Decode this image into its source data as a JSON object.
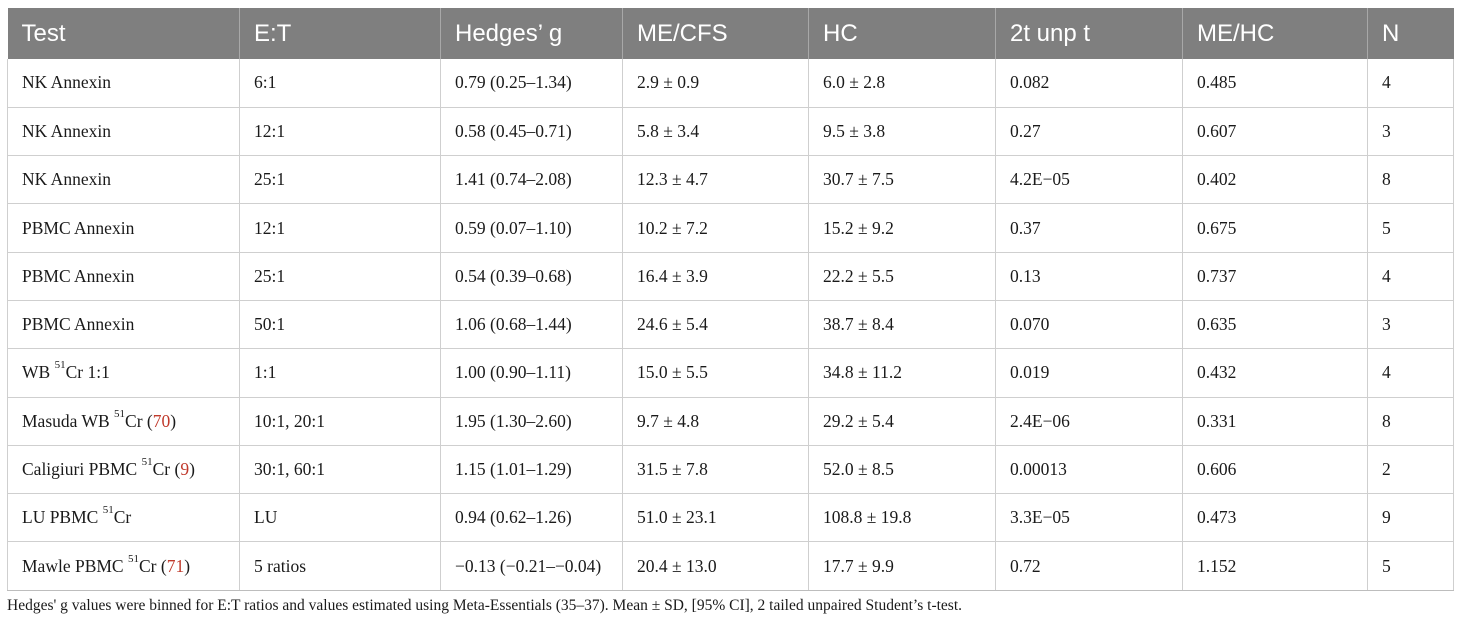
{
  "table": {
    "headers": [
      "Test",
      "E:T",
      "Hedges’ g",
      "ME/CFS",
      "HC",
      "2t unp t",
      "ME/HC",
      "N"
    ],
    "rows": [
      {
        "test_prefix": "NK Annexin",
        "sup": "",
        "test_suffix": "",
        "ref": "",
        "ref_suffix": "",
        "et": "6:1",
        "hedges": "0.79 (0.25–1.34)",
        "mecfs": "2.9 ± 0.9",
        "hc": "6.0 ± 2.8",
        "t": "0.082",
        "mehc": "0.485",
        "n": "4"
      },
      {
        "test_prefix": "NK Annexin",
        "sup": "",
        "test_suffix": "",
        "ref": "",
        "ref_suffix": "",
        "et": "12:1",
        "hedges": "0.58 (0.45–0.71)",
        "mecfs": "5.8 ± 3.4",
        "hc": "9.5 ± 3.8",
        "t": "0.27",
        "mehc": "0.607",
        "n": "3"
      },
      {
        "test_prefix": "NK Annexin",
        "sup": "",
        "test_suffix": "",
        "ref": "",
        "ref_suffix": "",
        "et": "25:1",
        "hedges": "1.41 (0.74–2.08)",
        "mecfs": "12.3 ± 4.7",
        "hc": "30.7 ± 7.5",
        "t": "4.2E−05",
        "mehc": "0.402",
        "n": "8"
      },
      {
        "test_prefix": "PBMC Annexin",
        "sup": "",
        "test_suffix": "",
        "ref": "",
        "ref_suffix": "",
        "et": "12:1",
        "hedges": "0.59 (0.07–1.10)",
        "mecfs": "10.2 ± 7.2",
        "hc": "15.2 ± 9.2",
        "t": "0.37",
        "mehc": "0.675",
        "n": "5"
      },
      {
        "test_prefix": "PBMC Annexin",
        "sup": "",
        "test_suffix": "",
        "ref": "",
        "ref_suffix": "",
        "et": "25:1",
        "hedges": "0.54 (0.39–0.68)",
        "mecfs": "16.4 ± 3.9",
        "hc": "22.2 ± 5.5",
        "t": "0.13",
        "mehc": "0.737",
        "n": "4"
      },
      {
        "test_prefix": "PBMC Annexin",
        "sup": "",
        "test_suffix": "",
        "ref": "",
        "ref_suffix": "",
        "et": "50:1",
        "hedges": "1.06 (0.68–1.44)",
        "mecfs": "24.6 ± 5.4",
        "hc": "38.7 ± 8.4",
        "t": "0.070",
        "mehc": "0.635",
        "n": "3"
      },
      {
        "test_prefix": "WB ",
        "sup": "51",
        "test_suffix": "Cr 1:1",
        "ref": "",
        "ref_suffix": "",
        "et": "1:1",
        "hedges": "1.00 (0.90–1.11)",
        "mecfs": "15.0 ± 5.5",
        "hc": "34.8 ± 11.2",
        "t": "0.019",
        "mehc": "0.432",
        "n": "4"
      },
      {
        "test_prefix": "Masuda WB ",
        "sup": "51",
        "test_suffix": "Cr (",
        "ref": "70",
        "ref_suffix": ")",
        "et": "10:1, 20:1",
        "hedges": "1.95 (1.30–2.60)",
        "mecfs": "9.7 ± 4.8",
        "hc": "29.2 ± 5.4",
        "t": "2.4E−06",
        "mehc": "0.331",
        "n": "8"
      },
      {
        "test_prefix": "Caligiuri PBMC ",
        "sup": "51",
        "test_suffix": "Cr (",
        "ref": "9",
        "ref_suffix": ")",
        "et": "30:1, 60:1",
        "hedges": "1.15 (1.01–1.29)",
        "mecfs": "31.5 ± 7.8",
        "hc": "52.0 ± 8.5",
        "t": "0.00013",
        "mehc": "0.606",
        "n": "2"
      },
      {
        "test_prefix": "LU PBMC ",
        "sup": "51",
        "test_suffix": "Cr",
        "ref": "",
        "ref_suffix": "",
        "et": "LU",
        "hedges": "0.94 (0.62–1.26)",
        "mecfs": "51.0 ± 23.1",
        "hc": "108.8 ± 19.8",
        "t": "3.3E−05",
        "mehc": "0.473",
        "n": "9"
      },
      {
        "test_prefix": "Mawle PBMC ",
        "sup": "51",
        "test_suffix": "Cr (",
        "ref": "71",
        "ref_suffix": ")",
        "et": "5 ratios",
        "hedges": "−0.13 (−0.21–−0.04)",
        "mecfs": "20.4 ± 13.0",
        "hc": "17.7 ± 9.9",
        "t": "0.72",
        "mehc": "1.152",
        "n": "5"
      }
    ]
  },
  "footnote": "Hedges' g values were binned for E:T ratios and values estimated using Meta-Essentials (35–37). Mean ± SD, [95% CI], 2 tailed unpaired Student’s t-test.",
  "colors": {
    "header_bg": "#7f7f7f",
    "header_text": "#ffffff",
    "reference_link": "#c0392b",
    "grid": "#cfcfcf"
  }
}
